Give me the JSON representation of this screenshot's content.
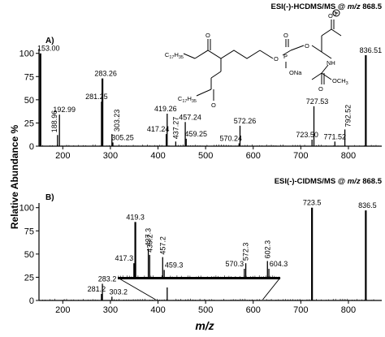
{
  "ylabel": "Relative Abundance %",
  "xlabel": "m/z",
  "chart_data": [
    {
      "type": "bar",
      "panel_label": "A)",
      "title_prefix": "ESI(-)-HCDMS/MS @ ",
      "title_mz": "m/z",
      "title_value": " 868.5",
      "xlim": [
        150,
        870
      ],
      "ylim": [
        0,
        105
      ],
      "xticks": [
        200,
        300,
        400,
        500,
        600,
        700,
        800
      ],
      "yticks": [
        0,
        25,
        50,
        75,
        100
      ],
      "peaks": [
        {
          "x": 153.0,
          "y": 100,
          "label": "153.00"
        },
        {
          "x": 188.96,
          "y": 12,
          "label": "188.96"
        },
        {
          "x": 192.99,
          "y": 34,
          "label": "192.99"
        },
        {
          "x": 281.25,
          "y": 48,
          "label": "281.25"
        },
        {
          "x": 283.26,
          "y": 73,
          "label": "283.26"
        },
        {
          "x": 303.23,
          "y": 13,
          "label": "303.23"
        },
        {
          "x": 305.25,
          "y": 4,
          "label": "305.25"
        },
        {
          "x": 417.24,
          "y": 13,
          "label": "417.24"
        },
        {
          "x": 419.26,
          "y": 35,
          "label": "419.26"
        },
        {
          "x": 437.27,
          "y": 5,
          "label": "437.27"
        },
        {
          "x": 457.24,
          "y": 26,
          "label": "457.24"
        },
        {
          "x": 459.25,
          "y": 8,
          "label": "459.25"
        },
        {
          "x": 570.24,
          "y": 3,
          "label": "570.24"
        },
        {
          "x": 572.26,
          "y": 22,
          "label": "572.26"
        },
        {
          "x": 723.5,
          "y": 7,
          "label": "723.50"
        },
        {
          "x": 727.53,
          "y": 43,
          "label": "727.53"
        },
        {
          "x": 771.52,
          "y": 5,
          "label": "771.52"
        },
        {
          "x": 792.52,
          "y": 18,
          "label": "792.52"
        },
        {
          "x": 836.51,
          "y": 98,
          "label": "836.51"
        }
      ],
      "structure_labels": {
        "o_minus": "O",
        "oxy1": "O",
        "oxy2": "O",
        "oxy3": "O",
        "oxy4": "O",
        "p": "P",
        "ona": "ONa",
        "o_ester1": "O",
        "o_ester2": "O",
        "nh": "NH",
        "och3": "OCH",
        "och3_sub": "3",
        "c17_1": "C",
        "c17_1_sub": "17",
        "h35_1": "H",
        "h35_1_sub": "35",
        "c17_2": "C",
        "c17_2_sub": "17",
        "h35_2": "H",
        "h35_2_sub": "35"
      }
    },
    {
      "type": "bar",
      "panel_label": "B)",
      "title_prefix": "ESI(-)-CIDMS/MS @ ",
      "title_mz": "m/z",
      "title_value": " 868.5",
      "xlim": [
        150,
        870
      ],
      "ylim": [
        0,
        105
      ],
      "xticks": [
        200,
        300,
        400,
        500,
        600,
        700,
        800
      ],
      "yticks": [
        0,
        25,
        50,
        75,
        100
      ],
      "peaks": [
        {
          "x": 281.2,
          "y": 7,
          "label": "281.2"
        },
        {
          "x": 283.2,
          "y": 18,
          "label": "283.2"
        },
        {
          "x": 303.2,
          "y": 4,
          "label": "303.2"
        },
        {
          "x": 419.3,
          "y": 14,
          "label": ""
        },
        {
          "x": 723.5,
          "y": 100,
          "label": "723.5"
        },
        {
          "x": 836.5,
          "y": 97,
          "label": "836.5"
        }
      ],
      "inset": {
        "xlim": [
          395,
          620
        ],
        "peaks": [
          {
            "x": 417.3,
            "y": 26,
            "label": "417.3"
          },
          {
            "x": 419.3,
            "y": 100,
            "label": "419.3"
          },
          {
            "x": 437.3,
            "y": 52,
            "label": "437.3"
          },
          {
            "x": 439.2,
            "y": 41,
            "label": "439.2"
          },
          {
            "x": 457.2,
            "y": 37,
            "label": "457.2"
          },
          {
            "x": 459.3,
            "y": 14,
            "label": "459.3"
          },
          {
            "x": 570.3,
            "y": 16,
            "label": "570.3"
          },
          {
            "x": 572.3,
            "y": 26,
            "label": "572.3"
          },
          {
            "x": 602.3,
            "y": 30,
            "label": "602.3"
          },
          {
            "x": 604.3,
            "y": 16,
            "label": "604.3"
          }
        ]
      }
    }
  ]
}
